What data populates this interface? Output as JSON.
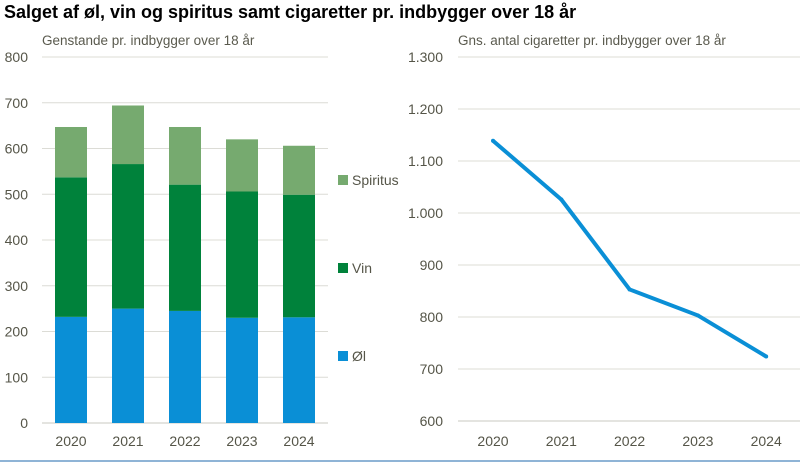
{
  "title": "Salget af øl, vin og spiritus samt cigaretter pr. indbygger over 18 år",
  "chart_data": [
    {
      "type": "bar",
      "stacked": true,
      "title": "Genstande pr. indbygger over 18 år",
      "categories": [
        "2020",
        "2021",
        "2022",
        "2023",
        "2024"
      ],
      "series": [
        {
          "name": "Øl",
          "color": "#0a8fd6",
          "values": [
            232,
            250,
            245,
            230,
            231
          ]
        },
        {
          "name": "Vin",
          "color": "#00823b",
          "values": [
            305,
            316,
            276,
            276,
            268
          ]
        },
        {
          "name": "Spiritus",
          "color": "#76aa6f",
          "values": [
            110,
            128,
            126,
            114,
            107
          ]
        }
      ],
      "ylim": [
        0,
        800
      ],
      "yticks": [
        "0",
        "100",
        "200",
        "300",
        "400",
        "500",
        "600",
        "700",
        "800"
      ],
      "grid": true,
      "legend": "right"
    },
    {
      "type": "line",
      "title": "Gns. antal cigaretter pr. indbygger over 18 år",
      "categories": [
        "2020",
        "2021",
        "2022",
        "2023",
        "2024"
      ],
      "series": [
        {
          "color": "#0a8fd6",
          "values": [
            1139,
            1026,
            853,
            803,
            724
          ]
        }
      ],
      "ylim": [
        600,
        1300
      ],
      "yticks": [
        "600",
        "700",
        "800",
        "900",
        "1.000",
        "1.100",
        "1.200",
        "1.300"
      ],
      "grid": true
    }
  ]
}
